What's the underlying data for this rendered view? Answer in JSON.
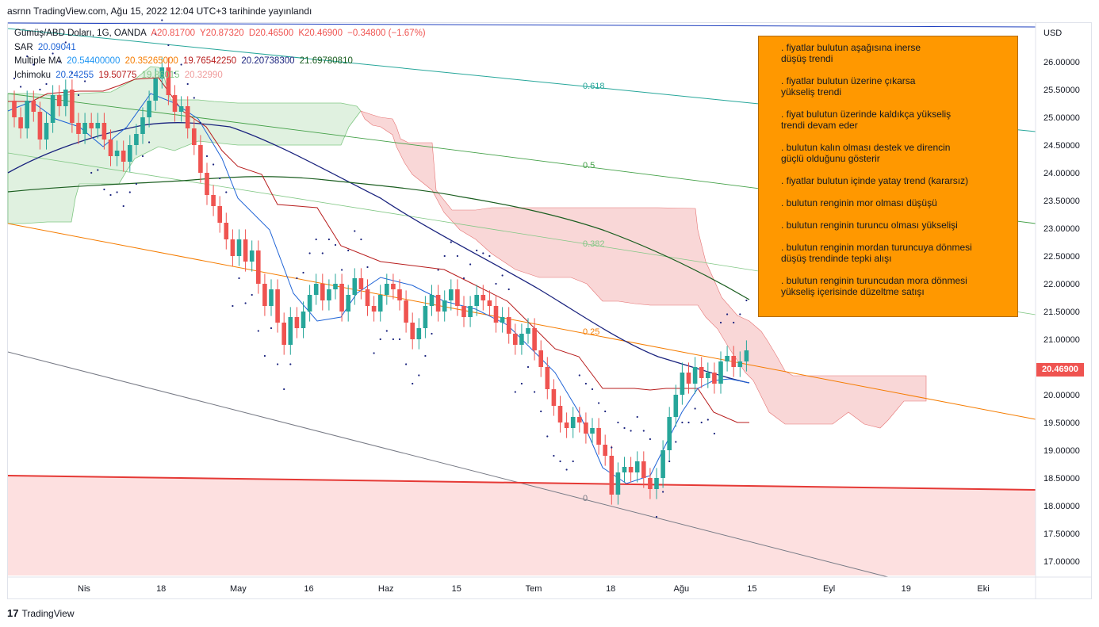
{
  "header": {
    "publish_info": "asrnn TradingView.com, Ağu 15, 2022 12:04 UTC+3 tarihinde yayınlandı"
  },
  "legend": {
    "symbol": {
      "name": "Gümüş/ABD Doları, 1G, OANDA",
      "open": "A20.81700",
      "high": "Y20.87320",
      "low": "D20.46500",
      "close": "K20.46900",
      "change": "−0.34800 (−1.67%)"
    },
    "sar": {
      "label": "SAR",
      "value": "20.09041"
    },
    "ma": {
      "label": "Multiple MA",
      "v1": "20.54400000",
      "v2": "20.35265000",
      "v3": "19.76542250",
      "v4": "20.20738300",
      "v5": "21.69780810"
    },
    "ichimoku": {
      "label": "Ichimoku",
      "v1": "20.24255",
      "v2": "19.50775",
      "v3": "19.86015",
      "v4": "20.32990"
    }
  },
  "price_axis": {
    "currency": "USD",
    "ticks": [
      "26.00000",
      "25.50000",
      "25.00000",
      "24.50000",
      "24.00000",
      "23.50000",
      "23.00000",
      "22.50000",
      "22.00000",
      "21.50000",
      "21.00000",
      "20.50000",
      "20.00000",
      "19.50000",
      "19.00000",
      "18.50000",
      "18.00000",
      "17.50000",
      "17.00000"
    ],
    "tick_values": [
      26.0,
      25.5,
      25.0,
      24.5,
      24.0,
      23.5,
      23.0,
      22.5,
      22.0,
      21.5,
      21.0,
      20.5,
      20.0,
      19.5,
      19.0,
      18.5,
      18.0,
      17.5,
      17.0
    ],
    "last_price_label": "20.46900",
    "last_price": 20.469
  },
  "time_axis": {
    "labels": [
      "Nis",
      "18",
      "May",
      "16",
      "Haz",
      "15",
      "Tem",
      "18",
      "Ağu",
      "15",
      "Eyl",
      "19",
      "Eki"
    ],
    "bar_index": [
      0,
      12,
      24,
      35,
      47,
      58,
      70,
      82,
      93,
      104,
      116,
      128,
      140
    ]
  },
  "fib_levels": [
    {
      "label": "0.618",
      "value": 0.618
    },
    {
      "label": "0.5",
      "value": 0.5
    },
    {
      "label": "0.382",
      "value": 0.382
    },
    {
      "label": "0.25",
      "value": 0.25
    },
    {
      "label": "0",
      "value": 0
    }
  ],
  "notes": [
    ". fiyatlar bulutun aşağısına inerse\ndüşüş trendi",
    ". fiyatlar bulutun üzerine çıkarsa\nyükseliş trendi",
    ". fiyat bulutun üzerinde kaldıkça yükseliş\ntrendi devam eder",
    ". bulutun kalın olması destek ve direncin\ngüçlü olduğunu gösterir",
    ". fiyatlar bulutun içinde yatay trend (kararsız)",
    ". bulutun renginin mor olması düşüşü",
    ". bulutun renginin turuncu olması yükselişi",
    ".  bulutun renginin mordan turuncuya dönmesi\ndüşüş trendinde tepki alışı",
    ". bulutun renginin turuncudan mora dönmesi\nyükseliş içerisinde düzeltme satışı"
  ],
  "footer": {
    "brand": "TradingView",
    "logo_glyph": "17"
  },
  "colors": {
    "up": "#26a69a",
    "down": "#ef5350",
    "sar": "#1a237e",
    "note_bg": "#ff9800",
    "cloud_bull": "#a5d6a7",
    "cloud_bear": "#ef9a9a",
    "ma_navy": "#1a237e",
    "ma_green": "#1b5e20"
  },
  "chart_data": {
    "type": "candlestick",
    "symbol": "Gümüş/ABD Doları, 1G, OANDA",
    "ylim": [
      16.7,
      26.6
    ],
    "candles_close": [
      25.0,
      24.8,
      25.3,
      25.1,
      24.6,
      24.9,
      25.4,
      25.2,
      25.5,
      24.9,
      24.7,
      24.9,
      24.8,
      24.9,
      24.6,
      24.3,
      24.4,
      24.2,
      24.5,
      24.7,
      25.0,
      25.3,
      25.7,
      25.9,
      25.4,
      25.1,
      25.2,
      24.8,
      24.5,
      24.0,
      23.6,
      23.4,
      23.1,
      22.8,
      22.5,
      22.8,
      22.4,
      22.6,
      22.0,
      21.6,
      21.9,
      21.3,
      20.9,
      21.4,
      21.2,
      21.5,
      21.8,
      22.0,
      21.7,
      21.9,
      22.0,
      21.5,
      21.8,
      22.1,
      21.9,
      21.6,
      21.5,
      21.8,
      22.0,
      21.9,
      21.7,
      21.3,
      21.0,
      21.2,
      21.6,
      21.8,
      21.5,
      21.7,
      21.9,
      21.6,
      21.4,
      21.6,
      21.8,
      21.7,
      21.6,
      21.3,
      21.4,
      21.1,
      20.9,
      21.1,
      21.2,
      20.8,
      20.5,
      20.1,
      19.8,
      19.5,
      19.4,
      19.6,
      19.5,
      19.3,
      19.4,
      19.1,
      18.9,
      18.2,
      18.6,
      18.7,
      18.6,
      18.8,
      18.5,
      18.3,
      18.5,
      19.0,
      19.6,
      20.0,
      20.4,
      20.2,
      20.5,
      20.3,
      20.4,
      20.2,
      20.6,
      20.7,
      20.5,
      20.6,
      20.8,
      20.47
    ],
    "candles_open": [
      25.3,
      25.0,
      24.8,
      25.3,
      25.1,
      24.6,
      24.9,
      25.4,
      25.2,
      25.5,
      24.9,
      24.7,
      24.9,
      24.8,
      24.9,
      24.6,
      24.3,
      24.4,
      24.2,
      24.5,
      24.7,
      25.0,
      25.3,
      25.7,
      25.9,
      25.4,
      25.1,
      25.2,
      24.8,
      24.5,
      24.0,
      23.6,
      23.4,
      23.1,
      22.8,
      22.5,
      22.8,
      22.4,
      22.6,
      22.0,
      21.6,
      21.9,
      21.3,
      20.9,
      21.4,
      21.2,
      21.5,
      21.8,
      22.0,
      21.7,
      21.9,
      22.0,
      21.5,
      21.8,
      22.1,
      21.9,
      21.6,
      21.5,
      21.8,
      22.0,
      21.9,
      21.7,
      21.3,
      21.0,
      21.2,
      21.6,
      21.8,
      21.5,
      21.7,
      21.9,
      21.6,
      21.4,
      21.6,
      21.8,
      21.7,
      21.6,
      21.3,
      21.4,
      21.1,
      20.9,
      21.1,
      21.2,
      20.8,
      20.5,
      20.1,
      19.8,
      19.5,
      19.4,
      19.6,
      19.5,
      19.3,
      19.4,
      19.1,
      18.9,
      18.2,
      18.6,
      18.7,
      18.6,
      18.8,
      18.5,
      18.3,
      18.5,
      19.0,
      19.6,
      20.0,
      20.4,
      20.2,
      20.5,
      20.3,
      20.4,
      20.2,
      20.6,
      20.7,
      20.5,
      20.6,
      20.81
    ]
  }
}
